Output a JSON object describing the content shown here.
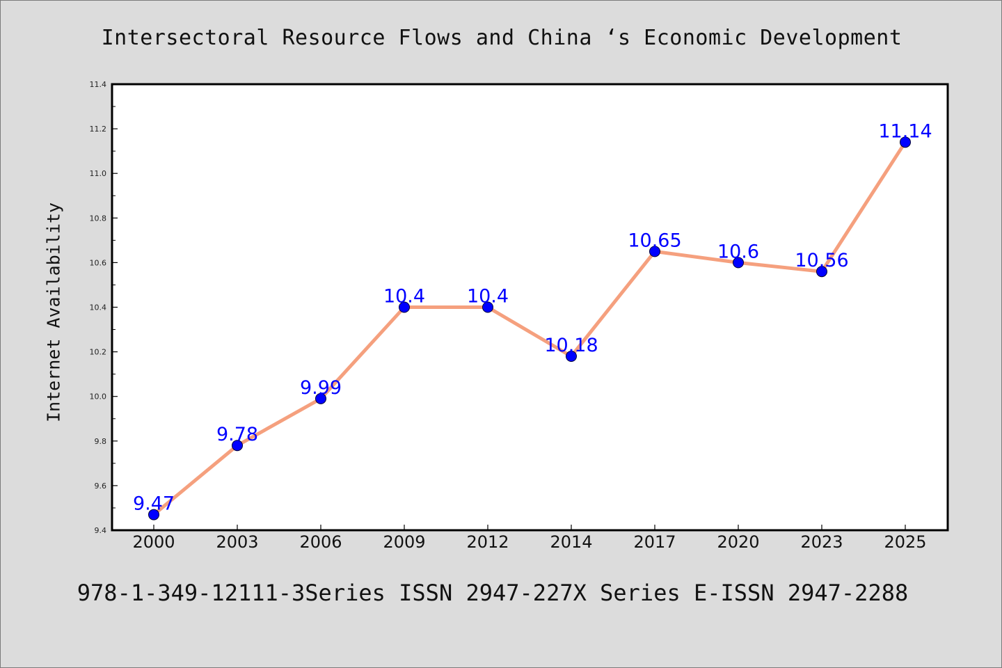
{
  "chart_data": {
    "type": "line",
    "title": "Intersectoral Resource Flows and China ‘s Economic Development",
    "xlabel": "",
    "ylabel": "Internet Availability",
    "categories": [
      "2000",
      "2003",
      "2006",
      "2009",
      "2012",
      "2014",
      "2017",
      "2020",
      "2023",
      "2025"
    ],
    "series": [
      {
        "values": [
          9.47,
          9.78,
          9.99,
          10.4,
          10.4,
          10.18,
          10.65,
          10.6,
          10.56,
          11.14
        ],
        "data_labels": [
          "9.47",
          "9.78",
          "9.99",
          "10.4",
          "10.4",
          "10.18",
          "10.65",
          "10.6",
          "10.56",
          "11.14"
        ]
      }
    ],
    "ylim": [
      9.4,
      11.4
    ],
    "yticks": [
      "9.4",
      "9.6",
      "9.8",
      "10.0",
      "10.2",
      "10.4",
      "10.6",
      "10.8",
      "11.0",
      "11.2",
      "11.4"
    ],
    "grid": false,
    "legend": "none",
    "colors": {
      "line": "#f5a07e",
      "marker": "#0000ff",
      "data_label": "#0000ff",
      "background": "#dcdcdc",
      "plot_background": "#ffffff"
    }
  },
  "footer": "978-1-349-12111-3Series ISSN 2947-227X Series E-ISSN 2947-2288"
}
